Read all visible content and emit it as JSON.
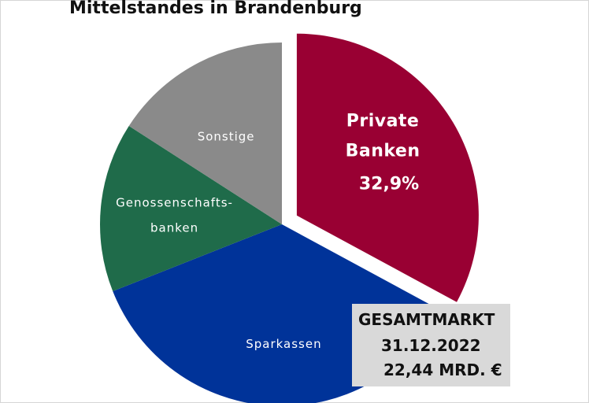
{
  "title": "Mittelstandes in Brandenburg",
  "chart_data": {
    "type": "pie",
    "title": "Mittelstandes in Brandenburg",
    "slices": [
      {
        "label": "Private Banken",
        "label_lines": [
          "Private",
          "Banken"
        ],
        "value_label": "32,9%",
        "value": 32.9,
        "color": "#990033",
        "exploded": true
      },
      {
        "label": "Sparkassen",
        "label_lines": [
          "Sparkassen"
        ],
        "value": 36.1,
        "color": "#003399"
      },
      {
        "label": "Genossenschaftsbanken",
        "label_lines": [
          "Genossenschafts-",
          "banken"
        ],
        "value": 15.1,
        "color": "#1f6b4a"
      },
      {
        "label": "Sonstige",
        "label_lines": [
          "Sonstige"
        ],
        "value": 15.9,
        "color": "#8a8a8a"
      }
    ]
  },
  "info_box": {
    "line1": "GESAMTMARKT",
    "line2": "31.12.2022",
    "line3": "22,44 MRD. €"
  }
}
